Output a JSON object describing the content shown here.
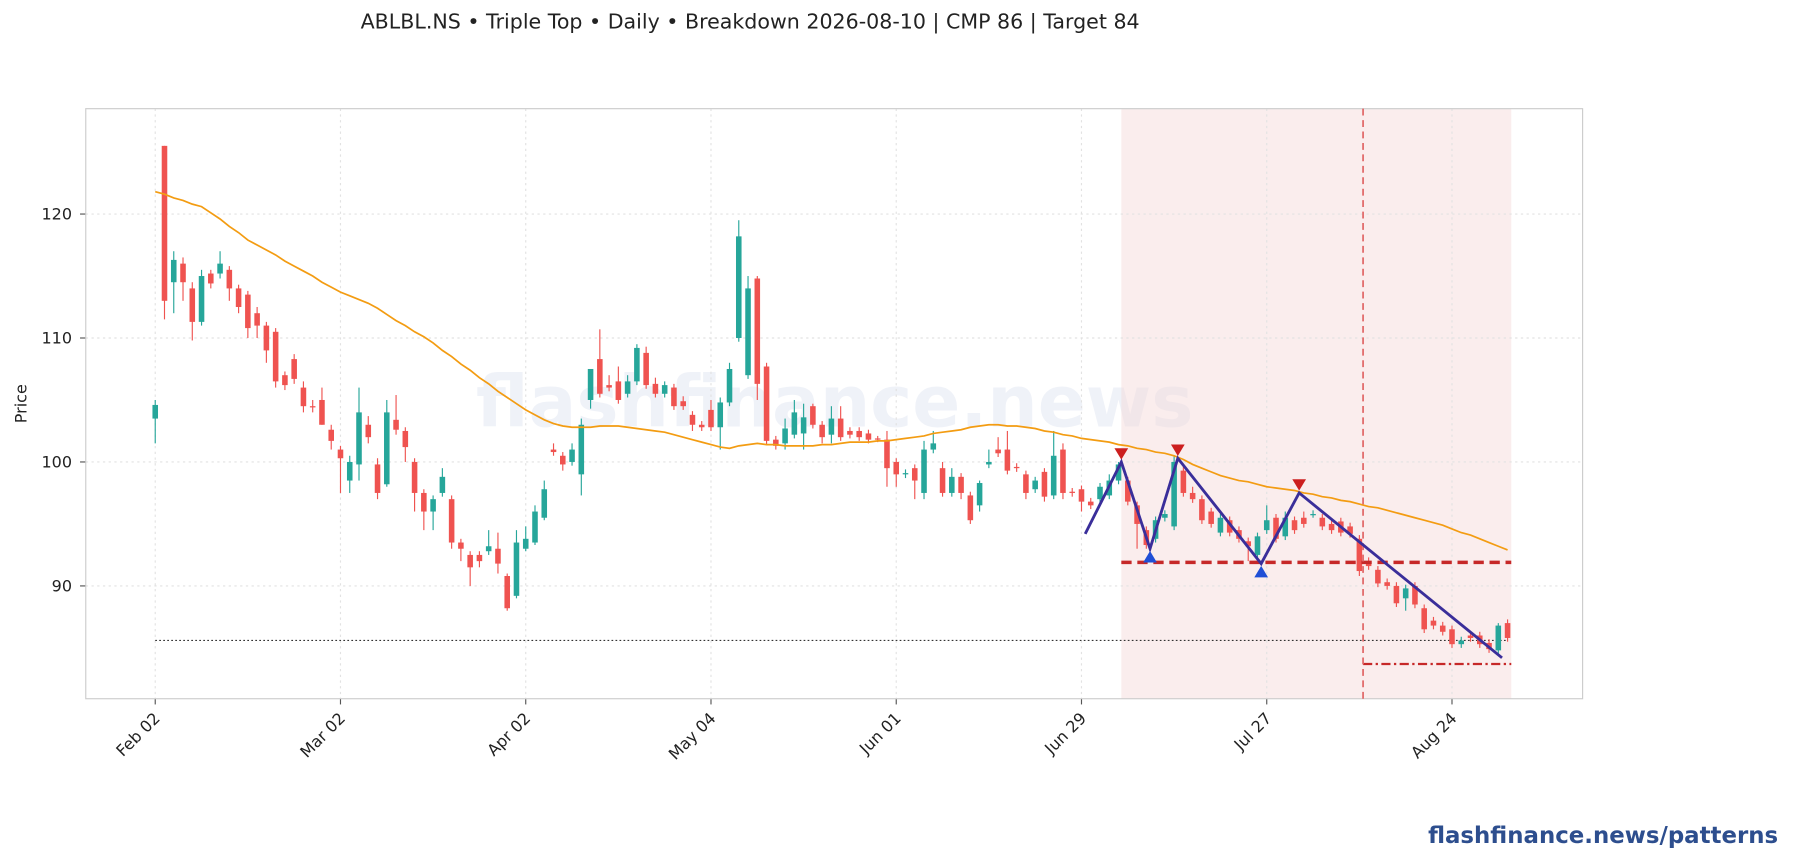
{
  "chart_data": {
    "type": "candlestick",
    "title": "ABLBL.NS  •  Triple Top  •  Daily  •  Breakdown 2026-08-10  |  CMP 86  |  Target 84",
    "ylabel": "Price",
    "watermark": "flashfinance.news",
    "footer": "flashfinance.news/patterns",
    "up_color": "#26a69a",
    "down_color": "#ef5350",
    "grid": true,
    "ylim": [
      80.9,
      128.5
    ],
    "yticks": [
      90,
      100,
      110,
      120
    ],
    "xlim": [
      -7.5,
      154.1
    ],
    "categories": [
      "Feb 02",
      null,
      null,
      null,
      null,
      null,
      null,
      null,
      null,
      null,
      null,
      null,
      null,
      null,
      null,
      null,
      null,
      null,
      null,
      null,
      "Mar 02",
      null,
      null,
      null,
      null,
      null,
      null,
      null,
      null,
      null,
      null,
      null,
      null,
      null,
      null,
      null,
      null,
      null,
      null,
      null,
      "Apr 02",
      null,
      null,
      null,
      null,
      null,
      null,
      null,
      null,
      null,
      null,
      null,
      null,
      null,
      null,
      null,
      null,
      null,
      null,
      null,
      "May 04",
      null,
      null,
      null,
      null,
      null,
      null,
      null,
      null,
      null,
      null,
      null,
      null,
      null,
      null,
      null,
      null,
      null,
      null,
      null,
      "Jun 01",
      null,
      null,
      null,
      null,
      null,
      null,
      null,
      null,
      null,
      null,
      null,
      null,
      null,
      null,
      null,
      null,
      null,
      null,
      null,
      "Jun 29",
      null,
      null,
      null,
      null,
      null,
      null,
      null,
      null,
      null,
      null,
      null,
      null,
      null,
      null,
      null,
      null,
      null,
      null,
      null,
      "Jul 27",
      null,
      null,
      null,
      null,
      null,
      null,
      null,
      null,
      null,
      null,
      null,
      null,
      null,
      null,
      null,
      null,
      null,
      null,
      null,
      "Aug 24",
      null,
      null,
      null,
      null,
      null,
      null
    ],
    "ohlc": [
      [
        103.5,
        105,
        101.5,
        104.6
      ],
      [
        125.5,
        125.5,
        111.5,
        113
      ],
      [
        114.5,
        117,
        112,
        116.3
      ],
      [
        116,
        116.5,
        113,
        114.5
      ],
      [
        114,
        114.5,
        109.8,
        111.3
      ],
      [
        111.3,
        115.5,
        111,
        115
      ],
      [
        115.2,
        115.5,
        114,
        114.4
      ],
      [
        115.2,
        117,
        114.8,
        116
      ],
      [
        115.5,
        115.8,
        113,
        114
      ],
      [
        114,
        114.3,
        112,
        112.5
      ],
      [
        113.5,
        113.8,
        110,
        110.8
      ],
      [
        112,
        112.5,
        110,
        111
      ],
      [
        111,
        111.3,
        108,
        109
      ],
      [
        110.5,
        110.8,
        106,
        106.5
      ],
      [
        107,
        107.3,
        105.8,
        106.2
      ],
      [
        108.3,
        108.7,
        106.3,
        106.7
      ],
      [
        106,
        106.5,
        104,
        104.5
      ],
      [
        104.5,
        105,
        104,
        104.4
      ],
      [
        105,
        106,
        103,
        103
      ],
      [
        102.6,
        103,
        101,
        101.7
      ],
      [
        101,
        101.3,
        97.5,
        100.3
      ],
      [
        98.5,
        100.5,
        97.5,
        100
      ],
      [
        99.8,
        106,
        98.5,
        104
      ],
      [
        103,
        103.7,
        101.5,
        102
      ],
      [
        99.8,
        100.3,
        97,
        97.5
      ],
      [
        98.2,
        105,
        98,
        104
      ],
      [
        103.4,
        105.4,
        102.2,
        102.6
      ],
      [
        102.5,
        102.8,
        100,
        101.2
      ],
      [
        100,
        100.3,
        96,
        97.5
      ],
      [
        97.5,
        97.8,
        94.5,
        96
      ],
      [
        96,
        97.3,
        94.5,
        97
      ],
      [
        97.5,
        99.5,
        97.2,
        98.8
      ],
      [
        97,
        97.3,
        93,
        93.5
      ],
      [
        93.5,
        93.8,
        92,
        93
      ],
      [
        92.5,
        92.8,
        90,
        91.5
      ],
      [
        92.5,
        92.8,
        91.5,
        92
      ],
      [
        92.8,
        94.5,
        92.5,
        93.2
      ],
      [
        93,
        94.3,
        91,
        91.8
      ],
      [
        90.8,
        91,
        88,
        88.2
      ],
      [
        89.2,
        94.5,
        89,
        93.5
      ],
      [
        93,
        94.8,
        92.8,
        93.8
      ],
      [
        93.5,
        96.5,
        93.3,
        96
      ],
      [
        95.5,
        98.5,
        95.3,
        97.8
      ],
      [
        101,
        101.5,
        100.5,
        100.8
      ],
      [
        100.5,
        100.8,
        99.3,
        99.8
      ],
      [
        100,
        101.5,
        99.7,
        101
      ],
      [
        99,
        103.5,
        97.3,
        103
      ],
      [
        105,
        107.5,
        104.3,
        107.5
      ],
      [
        108.3,
        110.7,
        105.2,
        105.5
      ],
      [
        106.2,
        107,
        105.7,
        106
      ],
      [
        106.5,
        107.7,
        104.7,
        105
      ],
      [
        105.5,
        107,
        105.2,
        106.5
      ],
      [
        106.5,
        109.5,
        106.2,
        109.2
      ],
      [
        108.8,
        109.3,
        105.9,
        106.2
      ],
      [
        106.3,
        106.8,
        105.2,
        105.5
      ],
      [
        105.5,
        106.5,
        105.2,
        106.2
      ],
      [
        106,
        106.3,
        104.2,
        104.5
      ],
      [
        104.9,
        105.3,
        104.2,
        104.5
      ],
      [
        103.8,
        104.1,
        102.5,
        103
      ],
      [
        103,
        103.3,
        102.5,
        102.8
      ],
      [
        104.2,
        105,
        102.5,
        102.8
      ],
      [
        102.8,
        105.2,
        101,
        104.8
      ],
      [
        104.8,
        108,
        104.5,
        107.5
      ],
      [
        110,
        119.5,
        109.7,
        118.2
      ],
      [
        107,
        115,
        106.7,
        114
      ],
      [
        114.8,
        115,
        105,
        106.3
      ],
      [
        107.7,
        108,
        101.4,
        101.7
      ],
      [
        101.8,
        102.1,
        101,
        101.3
      ],
      [
        101.5,
        103.5,
        101,
        102.7
      ],
      [
        102.2,
        105,
        101.9,
        104
      ],
      [
        102.3,
        104.7,
        101,
        103.6
      ],
      [
        104.5,
        104.7,
        102.7,
        103
      ],
      [
        103,
        103.3,
        101.5,
        102
      ],
      [
        102.2,
        104.5,
        101.5,
        103.5
      ],
      [
        103.5,
        104.5,
        101.7,
        102
      ],
      [
        102.5,
        102.8,
        101.9,
        102.2
      ],
      [
        102.5,
        102.8,
        101.7,
        102
      ],
      [
        102.3,
        102.6,
        101.5,
        101.8
      ],
      [
        101.9,
        102.1,
        101.6,
        101.8
      ],
      [
        101.8,
        102.5,
        98,
        99.5
      ],
      [
        100,
        100.3,
        98,
        99
      ],
      [
        99,
        99.4,
        98.7,
        99.1
      ],
      [
        99.5,
        99.8,
        97,
        98.5
      ],
      [
        97.5,
        101.7,
        97,
        101
      ],
      [
        101,
        102.5,
        100.7,
        101.5
      ],
      [
        99.5,
        100,
        97.2,
        97.5
      ],
      [
        97.5,
        99.5,
        97.2,
        98.8
      ],
      [
        98.8,
        99.1,
        97,
        97.5
      ],
      [
        97.3,
        97.6,
        95,
        95.3
      ],
      [
        96.5,
        98.5,
        96,
        98.3
      ],
      [
        99.8,
        101,
        99.5,
        100
      ],
      [
        101,
        102,
        100.4,
        100.7
      ],
      [
        101,
        102.5,
        99,
        99.3
      ],
      [
        99.6,
        99.9,
        99.2,
        99.5
      ],
      [
        99,
        99.3,
        97,
        97.5
      ],
      [
        97.8,
        98.8,
        97.5,
        98.5
      ],
      [
        99.2,
        99.5,
        96.8,
        97.2
      ],
      [
        97.3,
        102.5,
        97,
        100.5
      ],
      [
        101,
        101.5,
        97,
        97.5
      ],
      [
        97.6,
        97.9,
        97.2,
        97.5
      ],
      [
        97.8,
        98.1,
        96,
        96.8
      ],
      [
        96.8,
        97.1,
        96.2,
        96.5
      ],
      [
        97,
        98.3,
        96.5,
        98
      ],
      [
        97.3,
        99,
        97,
        98.5
      ],
      [
        98.5,
        100,
        98.2,
        99.8
      ],
      [
        98.5,
        98.8,
        96.5,
        96.8
      ],
      [
        96.5,
        96.8,
        93,
        95
      ],
      [
        94.5,
        94.8,
        93,
        93.3
      ],
      [
        93.8,
        95.6,
        93.5,
        95.3
      ],
      [
        95.5,
        96.1,
        95.2,
        95.8
      ],
      [
        94.8,
        100.5,
        94.5,
        100
      ],
      [
        99.3,
        99.6,
        97.2,
        97.5
      ],
      [
        97.5,
        98,
        96.7,
        97
      ],
      [
        97,
        97.3,
        95,
        95.3
      ],
      [
        96,
        96.3,
        94.7,
        95
      ],
      [
        94.3,
        95.8,
        94,
        95.5
      ],
      [
        95.3,
        95.6,
        94,
        94.3
      ],
      [
        94.5,
        94.8,
        93.5,
        93.8
      ],
      [
        93.6,
        93.9,
        92,
        93.2
      ],
      [
        92.5,
        94.3,
        91.8,
        94
      ],
      [
        94.5,
        96.5,
        94.2,
        95.3
      ],
      [
        95.5,
        95.8,
        93.5,
        93.8
      ],
      [
        94,
        96,
        93.7,
        95.5
      ],
      [
        95.3,
        95.6,
        94.2,
        94.5
      ],
      [
        95.5,
        96,
        94.7,
        95
      ],
      [
        95.7,
        96.1,
        95.5,
        95.8
      ],
      [
        95.5,
        95.8,
        94.5,
        94.8
      ],
      [
        95,
        95.3,
        94.2,
        94.5
      ],
      [
        95.2,
        95.5,
        94,
        94.3
      ],
      [
        94.8,
        95.1,
        93.9,
        94.2
      ],
      [
        93.8,
        94.1,
        90.8,
        91.2
      ],
      [
        92,
        92.3,
        91.3,
        91.6
      ],
      [
        91.3,
        91.6,
        89.9,
        90.2
      ],
      [
        90.3,
        90.6,
        89.7,
        90
      ],
      [
        90,
        90.3,
        88.3,
        88.6
      ],
      [
        89,
        90.1,
        88,
        89.8
      ],
      [
        90,
        90.3,
        88.2,
        88.5
      ],
      [
        88.2,
        88.5,
        86.2,
        86.5
      ],
      [
        87.2,
        87.5,
        86.5,
        86.8
      ],
      [
        86.8,
        87.1,
        86,
        86.3
      ],
      [
        86.5,
        86.8,
        85,
        85.3
      ],
      [
        85.3,
        85.9,
        85,
        85.6
      ],
      [
        86,
        86.3,
        85.5,
        85.8
      ],
      [
        86,
        86.3,
        85,
        85.3
      ],
      [
        85.4,
        85.7,
        84.6,
        84.9
      ],
      [
        84.8,
        87,
        84.5,
        86.8
      ],
      [
        87,
        87.3,
        85.5,
        85.8
      ]
    ],
    "ma": {
      "color": "#f39c12",
      "values": [
        121.8,
        121.6,
        121.3,
        121.1,
        120.8,
        120.6,
        120.1,
        119.6,
        119.0,
        118.5,
        117.9,
        117.5,
        117.1,
        116.7,
        116.2,
        115.8,
        115.4,
        115.0,
        114.5,
        114.1,
        113.7,
        113.4,
        113.1,
        112.8,
        112.4,
        111.9,
        111.4,
        111.0,
        110.5,
        110.1,
        109.6,
        109.0,
        108.5,
        107.9,
        107.4,
        106.8,
        106.3,
        105.7,
        105.2,
        104.7,
        104.2,
        103.8,
        103.4,
        103.1,
        102.9,
        102.8,
        102.8,
        102.8,
        102.9,
        102.9,
        102.9,
        102.8,
        102.7,
        102.6,
        102.5,
        102.4,
        102.2,
        102.0,
        101.8,
        101.6,
        101.4,
        101.2,
        101.1,
        101.3,
        101.4,
        101.5,
        101.4,
        101.4,
        101.3,
        101.3,
        101.3,
        101.3,
        101.4,
        101.4,
        101.5,
        101.6,
        101.6,
        101.6,
        101.7,
        101.7,
        101.8,
        101.9,
        102.0,
        102.1,
        102.3,
        102.4,
        102.5,
        102.6,
        102.8,
        102.9,
        103.0,
        103.0,
        102.9,
        102.9,
        102.8,
        102.7,
        102.5,
        102.4,
        102.2,
        102.1,
        101.9,
        101.8,
        101.7,
        101.6,
        101.4,
        101.3,
        101.1,
        101.0,
        100.8,
        100.7,
        100.5,
        100.2,
        99.8,
        99.5,
        99.2,
        98.9,
        98.7,
        98.5,
        98.4,
        98.2,
        98.0,
        97.9,
        97.8,
        97.7,
        97.5,
        97.4,
        97.2,
        97.1,
        96.9,
        96.8,
        96.6,
        96.4,
        96.3,
        96.1,
        95.9,
        95.7,
        95.5,
        95.3,
        95.1,
        94.9,
        94.6,
        94.3,
        94.1,
        93.8,
        93.5,
        93.2,
        92.9
      ]
    },
    "pattern": {
      "start": 104.3,
      "end": 146.4,
      "breakdown": 130.4,
      "neckline": 91.9,
      "target": 83.7,
      "cmp_line": 85.6,
      "zigzag": {
        "color": "#3a2e9a",
        "x": [
          100.4,
          104.3,
          107.4,
          110.4,
          119.4,
          123.5,
          145.4
        ],
        "values": [
          94.2,
          100,
          93,
          100.3,
          91.8,
          97.5,
          84.2
        ]
      },
      "peaks": {
        "color": "#cc1f1f",
        "x": [
          104.3,
          110.4,
          123.5
        ],
        "values": [
          100,
          100.3,
          97.5
        ]
      },
      "troughs": {
        "color": "#1f4fd6",
        "x": [
          107.4,
          119.4
        ],
        "values": [
          93,
          91.8
        ]
      }
    }
  }
}
